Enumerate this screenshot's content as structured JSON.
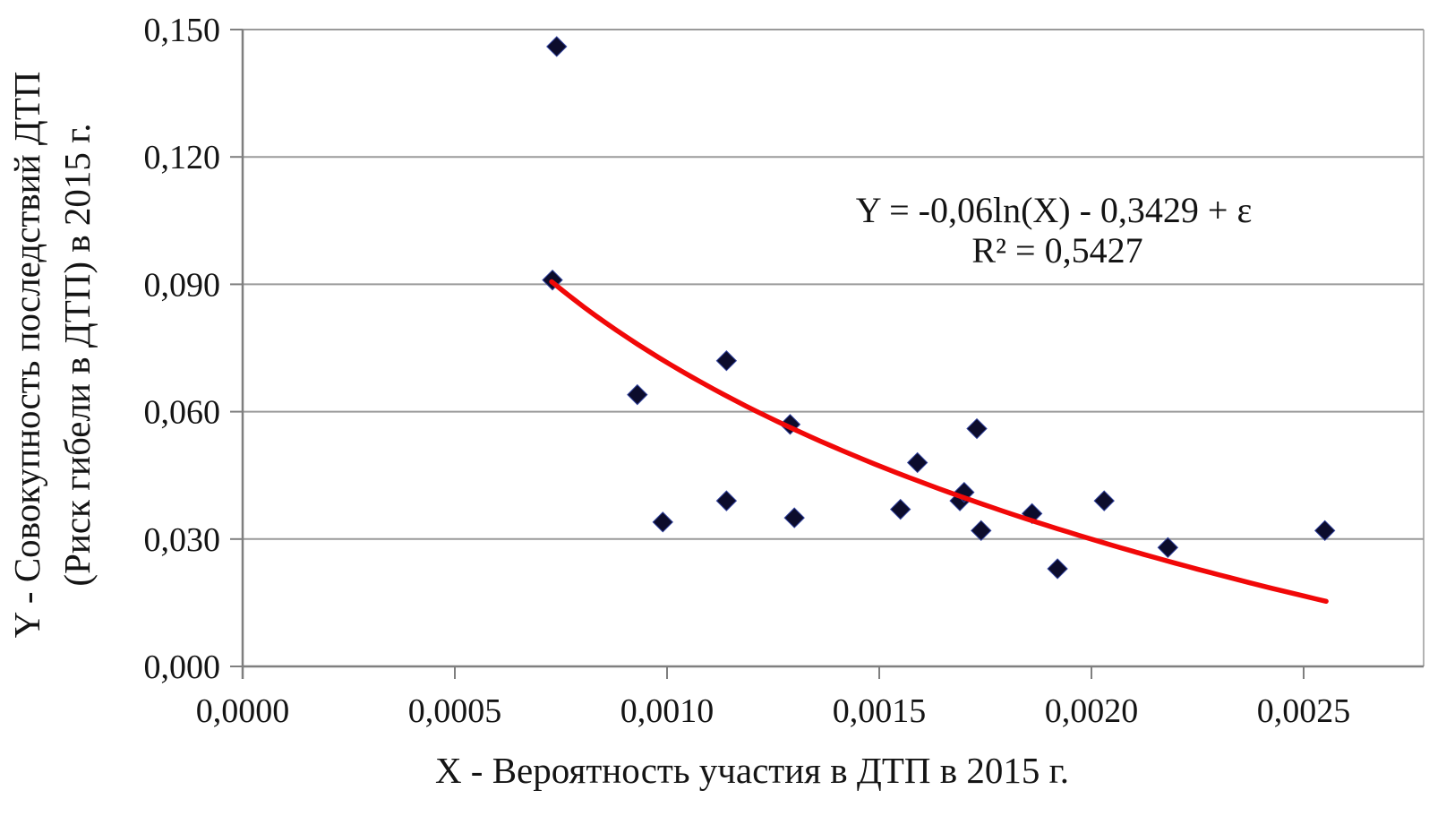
{
  "chart_data": {
    "type": "scatter",
    "title": "",
    "xlabel": "X - Вероятность участия в ДТП в 2015  г.",
    "ylabel_line1": "Y - Совокупность последствий ДТП",
    "ylabel_line2": "(Риск гибели в ДТП) в 2015 г.",
    "x_axis": {
      "tick_labels": [
        "0,0000",
        "0,0005",
        "0,0010",
        "0,0015",
        "0,0020",
        "0,0025"
      ],
      "tick_values": [
        0.0,
        0.0005,
        0.001,
        0.0015,
        0.002,
        0.0025
      ],
      "min": 0.0,
      "max": 0.00278
    },
    "y_axis": {
      "tick_labels": [
        "0,000",
        "0,030",
        "0,060",
        "0,090",
        "0,120",
        "0,150"
      ],
      "tick_values": [
        0.0,
        0.03,
        0.06,
        0.09,
        0.12,
        0.15
      ],
      "min": 0.0,
      "max": 0.15
    },
    "grid": "horizontal-only",
    "legend": "none",
    "points": [
      [
        0.00073,
        0.091
      ],
      [
        0.00074,
        0.146
      ],
      [
        0.00093,
        0.064
      ],
      [
        0.00099,
        0.034
      ],
      [
        0.00114,
        0.072
      ],
      [
        0.00114,
        0.039
      ],
      [
        0.00129,
        0.057
      ],
      [
        0.0013,
        0.035
      ],
      [
        0.00155,
        0.037
      ],
      [
        0.00159,
        0.048
      ],
      [
        0.00169,
        0.039
      ],
      [
        0.0017,
        0.041
      ],
      [
        0.00173,
        0.056
      ],
      [
        0.00174,
        0.032
      ],
      [
        0.00186,
        0.036
      ],
      [
        0.00192,
        0.023
      ],
      [
        0.00203,
        0.039
      ],
      [
        0.00218,
        0.028
      ],
      [
        0.00255,
        0.032
      ]
    ],
    "trendline": {
      "type": "logarithmic",
      "slope": -0.06,
      "intercept": -0.3429,
      "x_start": 0.000728,
      "x_end": 0.002553,
      "equation": "Y = -0,06ln(X) - 0,3429 + ε",
      "r_squared": "R² = 0,5427"
    },
    "colors": {
      "marker": "#0c0c2c",
      "marker_edge": "#31429e",
      "trend": "#f10808",
      "grid": "#9a9a9a",
      "axis": "#7f7f7f",
      "text": "#141414",
      "background": "#ffffff"
    }
  }
}
